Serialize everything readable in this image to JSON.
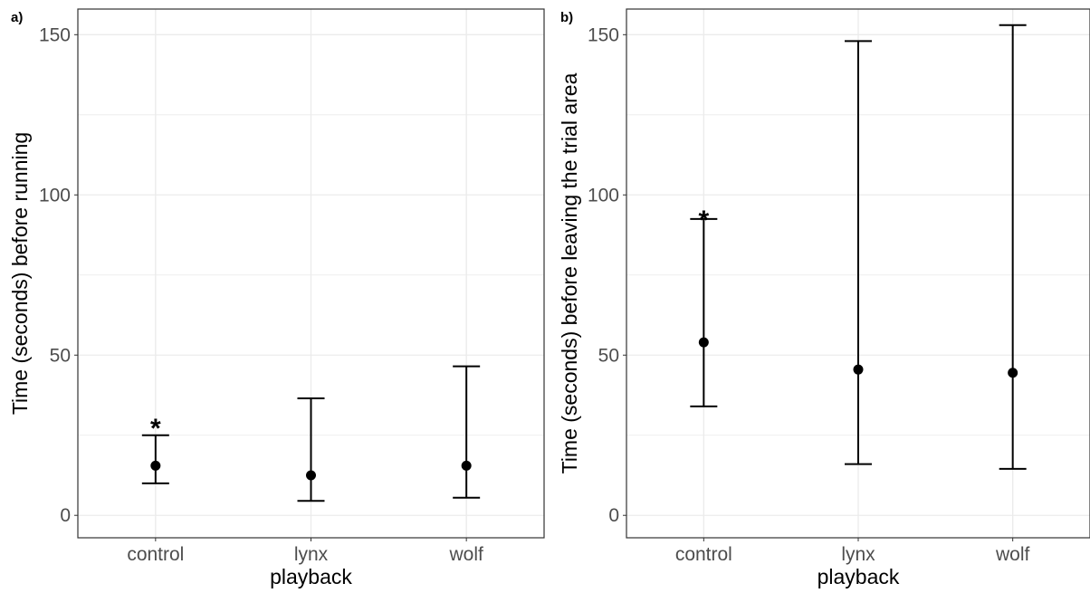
{
  "chart_data": [
    {
      "type": "scatter",
      "panel_label": "a)",
      "title": "",
      "xlabel": "playback",
      "ylabel": "Time (seconds) before running",
      "categories": [
        "control",
        "lynx",
        "wolf"
      ],
      "yticks": [
        0,
        50,
        100,
        150
      ],
      "ylim": [
        -7,
        158
      ],
      "grid": true,
      "legend": "none",
      "series": [
        {
          "values": [
            15.5,
            12.5,
            15.5
          ],
          "lower": [
            10,
            4.5,
            5.5
          ],
          "upper": [
            25,
            36.5,
            46.5
          ]
        }
      ],
      "annotations": [
        {
          "category": "control",
          "text": "*",
          "y": 30
        }
      ]
    },
    {
      "type": "scatter",
      "panel_label": "b)",
      "title": "",
      "xlabel": "playback",
      "ylabel": "Time (seconds) before leaving the trial area",
      "categories": [
        "control",
        "lynx",
        "wolf"
      ],
      "yticks": [
        0,
        50,
        100,
        150
      ],
      "ylim": [
        -7,
        158
      ],
      "grid": true,
      "legend": "none",
      "series": [
        {
          "values": [
            54,
            45.5,
            44.5
          ],
          "lower": [
            34,
            16,
            14.5
          ],
          "upper": [
            92.5,
            148,
            153
          ]
        }
      ],
      "annotations": [
        {
          "category": "control",
          "text": "*",
          "y": 95
        }
      ]
    }
  ],
  "colors": {
    "grid": "#ebebeb",
    "axis_text": "#4d4d4d",
    "ink": "#000000"
  }
}
